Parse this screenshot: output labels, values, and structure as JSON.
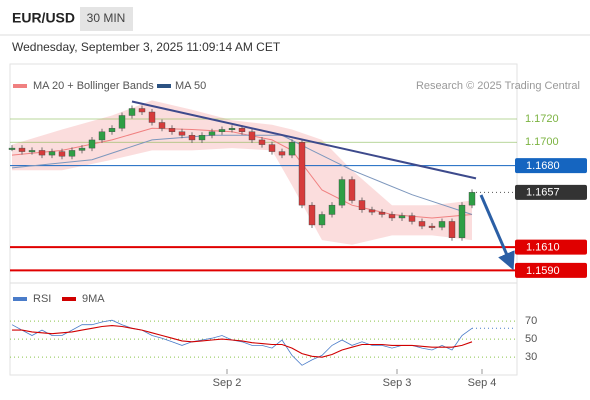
{
  "header": {
    "symbol": "EUR/USD",
    "interval": "30 MIN",
    "timestamp": "Wednesday, September 3, 2025 11:09:14 AM CET"
  },
  "chart_data": [
    {
      "type": "candlestick",
      "source": "Research © 2025 Trading Central",
      "x": [
        0,
        1,
        2,
        3,
        4,
        5,
        6,
        7,
        8,
        9,
        10,
        11,
        12,
        13,
        14,
        15,
        16,
        17,
        18,
        19,
        20,
        21,
        22,
        23,
        24,
        25,
        26,
        27,
        28,
        29,
        30,
        31,
        32,
        33,
        34,
        35,
        36,
        37,
        38,
        39,
        40,
        41,
        42,
        43,
        44,
        45,
        46
      ],
      "xlim": [
        0,
        50.4
      ],
      "xticks": [
        {
          "value": 21.5,
          "label": "Sep 2"
        },
        {
          "value": 38.5,
          "label": "Sep 3"
        },
        {
          "value": 47,
          "label": "Sep 4"
        }
      ],
      "ylim": [
        1.158,
        1.174
      ],
      "closes": [
        1.1695,
        1.1692,
        1.1693,
        1.1689,
        1.1692,
        1.1688,
        1.1693,
        1.1695,
        1.1702,
        1.1709,
        1.1712,
        1.1723,
        1.1729,
        1.1726,
        1.1717,
        1.1712,
        1.1709,
        1.1706,
        1.1702,
        1.1706,
        1.1709,
        1.1711,
        1.1712,
        1.1709,
        1.1702,
        1.1698,
        1.1692,
        1.1689,
        1.17,
        1.1646,
        1.1629,
        1.1638,
        1.1646,
        1.1668,
        1.165,
        1.1642,
        1.164,
        1.1638,
        1.1635,
        1.1637,
        1.1632,
        1.1628,
        1.1627,
        1.1632,
        1.1618,
        1.1646,
        1.1657
      ],
      "up_color": "#2e9e45",
      "down_color": "#d63b3b",
      "series": [
        {
          "name": "MA 20 + Bollinger Bands",
          "color": "#f08080",
          "band_color": "#fad4d4",
          "x": [
            0,
            5,
            10,
            14,
            18,
            22,
            26,
            28,
            31,
            34,
            38,
            42,
            46
          ],
          "values": [
            1.1689,
            1.1693,
            1.1702,
            1.1712,
            1.1711,
            1.1709,
            1.1702,
            1.1693,
            1.1659,
            1.1646,
            1.1638,
            1.1635,
            1.1638
          ],
          "upper": [
            1.1698,
            1.1711,
            1.1723,
            1.1736,
            1.1728,
            1.1719,
            1.1715,
            1.1711,
            1.1702,
            1.1676,
            1.1646,
            1.1646,
            1.165
          ],
          "lower": [
            1.1676,
            1.1676,
            1.1685,
            1.1693,
            1.1693,
            1.1695,
            1.1693,
            1.1663,
            1.1616,
            1.1612,
            1.162,
            1.162,
            1.1616
          ]
        },
        {
          "name": "MA 50",
          "color": "#2c5282",
          "line_color": "#7d97bd",
          "x": [
            0,
            8,
            14,
            20,
            27,
            30,
            34,
            40,
            46
          ],
          "values": [
            1.1678,
            1.1685,
            1.1702,
            1.1706,
            1.1706,
            1.1693,
            1.1676,
            1.1655,
            1.1638
          ]
        }
      ],
      "trendline": {
        "color": "#3d4a8c",
        "x": [
          12,
          46.4
        ],
        "values": [
          1.1735,
          1.1669
        ]
      },
      "levels": [
        {
          "value": 1.172,
          "label": "1.1720",
          "color": "#7cb342",
          "style": "line"
        },
        {
          "value": 1.17,
          "label": "1.1700",
          "color": "#7cb342",
          "style": "line"
        },
        {
          "value": 1.168,
          "label": "1.1680",
          "color": "#1565c0",
          "style": "box"
        },
        {
          "value": 1.1657,
          "color": "#333333",
          "style": "current"
        },
        {
          "value": 1.161,
          "label": "1.1610",
          "color": "#e00000",
          "style": "box"
        },
        {
          "value": 1.159,
          "label": "1.1590",
          "color": "#e00000",
          "style": "box"
        }
      ]
    },
    {
      "type": "line",
      "ylim": [
        18,
        100
      ],
      "yticks": [
        70,
        50,
        30
      ],
      "series": [
        {
          "name": "RSI",
          "color": "#4a7cc9",
          "values": [
            66,
            60,
            54,
            60,
            54,
            54,
            60,
            66,
            66,
            69,
            71,
            66,
            62,
            60,
            54,
            51,
            47,
            43,
            47,
            49,
            51,
            54,
            49,
            47,
            43,
            43,
            40,
            49,
            32,
            21,
            27,
            32,
            43,
            49,
            43,
            47,
            43,
            43,
            40,
            43,
            43,
            40,
            38,
            43,
            38,
            54,
            62
          ]
        },
        {
          "name": "9MA",
          "color": "#d00000",
          "values": [
            60,
            60,
            58,
            57,
            56,
            57,
            58,
            60,
            62,
            64,
            65,
            64,
            62,
            60,
            57,
            54,
            51,
            48,
            47,
            48,
            49,
            50,
            49,
            48,
            46,
            45,
            44,
            44,
            40,
            34,
            31,
            30,
            33,
            38,
            41,
            44,
            44,
            44,
            43,
            43,
            43,
            42,
            41,
            41,
            41,
            43,
            47
          ]
        }
      ]
    }
  ]
}
